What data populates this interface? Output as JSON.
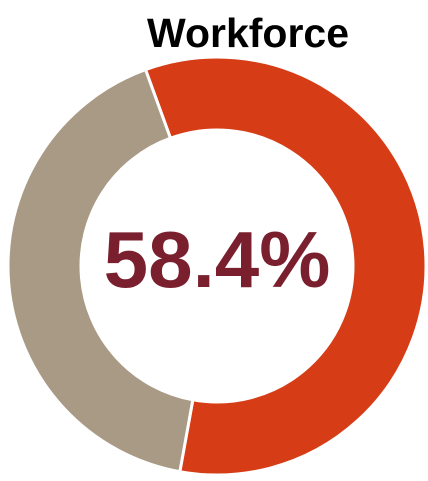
{
  "chart_data": {
    "type": "pie",
    "title": "Workforce",
    "center_label": "58.4%",
    "slices": [
      {
        "value": 58.4,
        "color": "#d63c16"
      },
      {
        "value": 41.6,
        "color": "#a99a86"
      }
    ],
    "start_angle_deg": 110,
    "colors": {
      "accent": "#d63c16",
      "rest": "#a99a86",
      "center_text": "#7a1f2e",
      "separator": "#ffffff"
    }
  }
}
